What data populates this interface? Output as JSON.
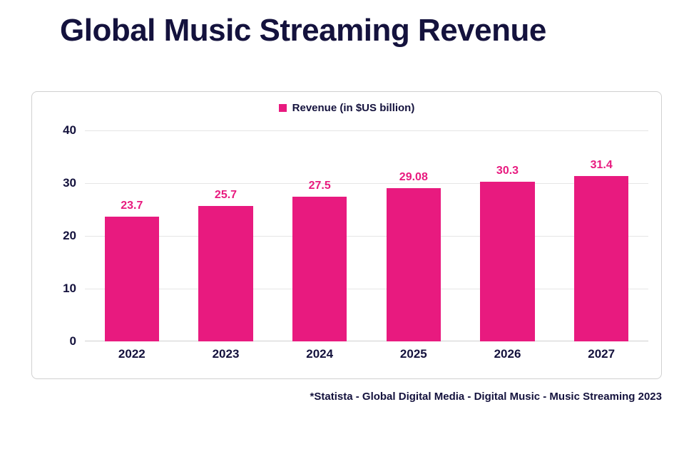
{
  "title": "Global Music Streaming Revenue",
  "title_color": "#14123d",
  "footnote": "*Statista - Global Digital Media - Digital Music - Music Streaming 2023",
  "footnote_color": "#14123d",
  "chart": {
    "type": "bar",
    "legend_label": "Revenue (in $US billion)",
    "legend_text_color": "#14123d",
    "card_border_color": "#d0d0d0",
    "card_bg": "#ffffff",
    "grid_color": "#e5e5e5",
    "axis_color": "#cfcfcf",
    "bar_color": "#e81a7f",
    "value_label_color": "#e81a7f",
    "tick_label_color": "#14123d",
    "ylim": [
      0,
      40
    ],
    "ytick_step": 10,
    "yticks": [
      0,
      10,
      20,
      30,
      40
    ],
    "bar_width_ratio": 0.58,
    "categories": [
      "2022",
      "2023",
      "2024",
      "2025",
      "2026",
      "2027"
    ],
    "values": [
      23.7,
      25.7,
      27.5,
      29.08,
      30.3,
      31.4
    ],
    "value_labels": [
      "23.7",
      "25.7",
      "27.5",
      "29.08",
      "30.3",
      "31.4"
    ],
    "font_family": "Arial, Helvetica, sans-serif",
    "title_fontsize": 44,
    "tick_fontsize": 17,
    "value_fontsize": 16,
    "legend_fontsize": 15,
    "footnote_fontsize": 15
  }
}
